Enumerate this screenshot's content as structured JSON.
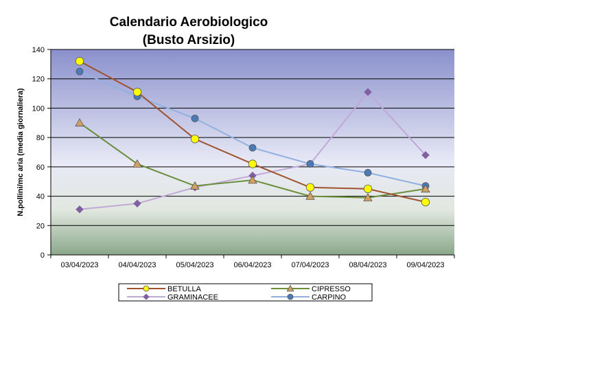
{
  "chart_data": {
    "type": "line",
    "title_lines": [
      "Calendario Aerobiologico",
      "(Busto Arsizio)"
    ],
    "ylabel": "N.pollini/mc aria (media giornaliera)",
    "xlabel": "",
    "ylim": [
      0,
      140
    ],
    "yticks": [
      0,
      20,
      40,
      60,
      80,
      100,
      120,
      140
    ],
    "categories": [
      "03/04/2023",
      "04/04/2023",
      "05/04/2023",
      "06/04/2023",
      "07/04/2023",
      "08/04/2023",
      "09/04/2023"
    ],
    "grid": true,
    "legend_position": "bottom",
    "series": [
      {
        "name": "BETULLA",
        "values": [
          132,
          111,
          79,
          62,
          46,
          45,
          36
        ],
        "line_color": "#a0522d",
        "marker": "circle",
        "marker_color": "#ffff00"
      },
      {
        "name": "CIPRESSO",
        "values": [
          90,
          62,
          47,
          51,
          40,
          39,
          45
        ],
        "line_color": "#6b8e3a",
        "marker": "triangle",
        "marker_color": "#d4a060"
      },
      {
        "name": "GRAMINACEE",
        "values": [
          31,
          35,
          46,
          54,
          62,
          111,
          68
        ],
        "line_color": "#c0a8d8",
        "marker": "diamond",
        "marker_color": "#8060a0"
      },
      {
        "name": "CARPINO",
        "values": [
          125,
          108,
          93,
          73,
          62,
          56,
          47
        ],
        "line_color": "#90b0e0",
        "marker": "circle",
        "marker_color": "#4a7ab8"
      }
    ]
  }
}
